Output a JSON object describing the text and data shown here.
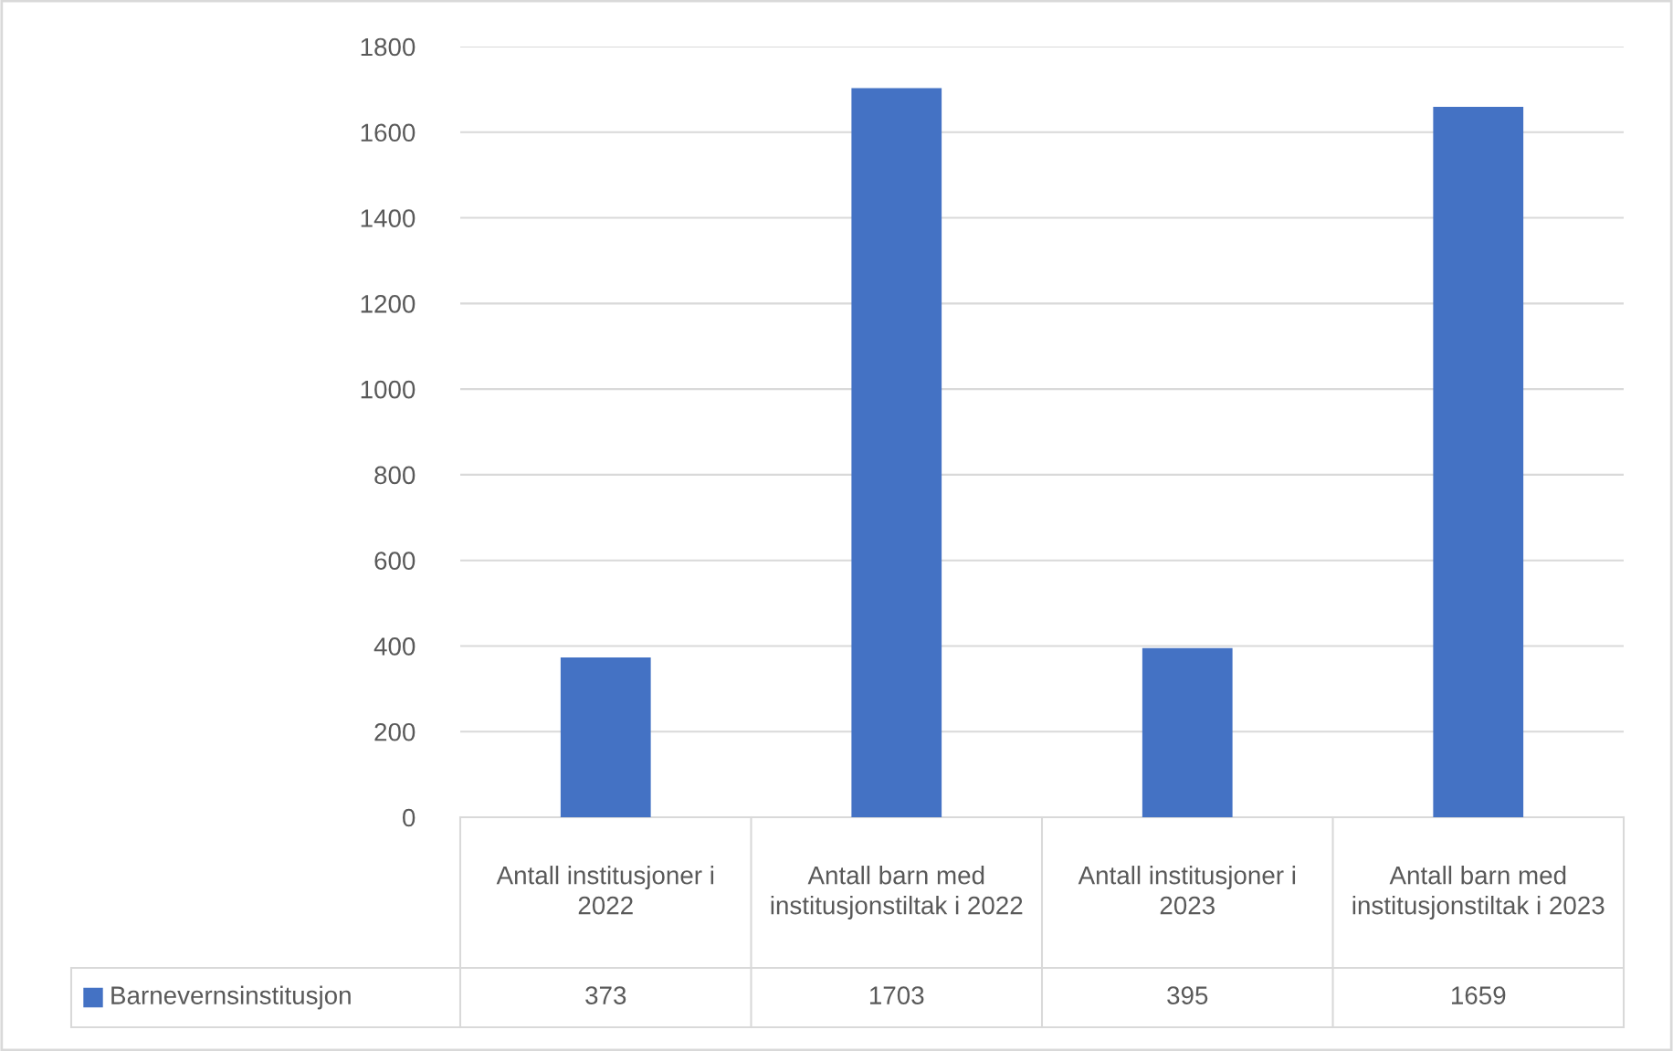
{
  "chart_data": {
    "type": "bar",
    "categories": [
      "Antall institusjoner i 2022",
      "Antall barn med institusjonstiltak i 2022",
      "Antall institusjoner i 2023",
      "Antall barn med institusjonstiltak i 2023"
    ],
    "series": [
      {
        "name": "Barnevernsinstitusjon",
        "color": "#4472c4",
        "values": [
          373,
          1703,
          395,
          1659
        ]
      }
    ],
    "ylim": [
      0,
      1800
    ],
    "yticks": [
      0,
      200,
      400,
      600,
      800,
      1000,
      1200,
      1400,
      1600,
      1800
    ],
    "grid": "y",
    "legend": "bottom",
    "data_labels": true
  }
}
